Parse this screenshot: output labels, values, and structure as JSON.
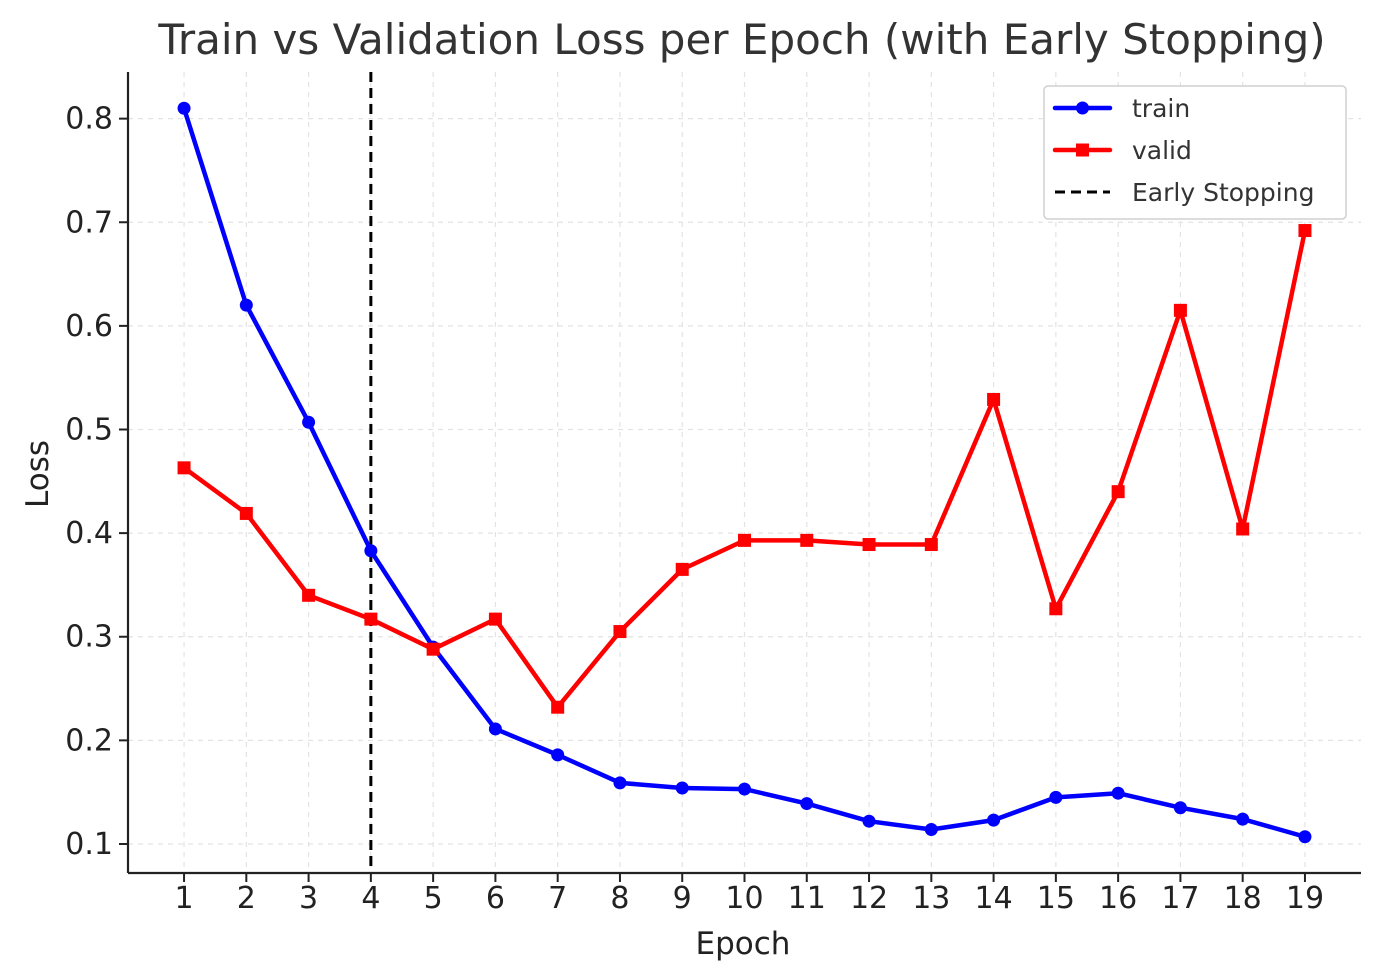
{
  "chart_data": {
    "type": "line",
    "title": "Train vs Validation Loss per Epoch (with Early Stopping)",
    "xlabel": "Epoch",
    "ylabel": "Loss",
    "x": [
      1,
      2,
      3,
      4,
      5,
      6,
      7,
      8,
      9,
      10,
      11,
      12,
      13,
      14,
      15,
      16,
      17,
      18,
      19
    ],
    "xlim": [
      0.1,
      19.9
    ],
    "ylim": [
      0.072,
      0.845
    ],
    "y_ticks": [
      0.1,
      0.2,
      0.3,
      0.4,
      0.5,
      0.6,
      0.7,
      0.8
    ],
    "y_tick_labels": [
      "0.1",
      "0.2",
      "0.3",
      "0.4",
      "0.5",
      "0.6",
      "0.7",
      "0.8"
    ],
    "x_tick_labels": [
      "1",
      "2",
      "3",
      "4",
      "5",
      "6",
      "7",
      "8",
      "9",
      "10",
      "11",
      "12",
      "13",
      "14",
      "15",
      "16",
      "17",
      "18",
      "19"
    ],
    "grid": true,
    "legend_position": "top-right",
    "series": [
      {
        "name": "train",
        "color": "#0000ff",
        "marker": "circle",
        "values": [
          0.81,
          0.62,
          0.507,
          0.383,
          0.29,
          0.211,
          0.186,
          0.159,
          0.154,
          0.153,
          0.139,
          0.122,
          0.114,
          0.123,
          0.145,
          0.149,
          0.135,
          0.124,
          0.107
        ]
      },
      {
        "name": "valid",
        "color": "#ff0000",
        "marker": "square",
        "values": [
          0.463,
          0.419,
          0.34,
          0.317,
          0.288,
          0.317,
          0.232,
          0.305,
          0.365,
          0.393,
          0.393,
          0.389,
          0.389,
          0.529,
          0.327,
          0.44,
          0.615,
          0.404,
          0.692
        ]
      }
    ],
    "vlines": [
      {
        "name": "Early Stopping",
        "x": 4,
        "color": "#000000",
        "style": "dashed"
      }
    ]
  }
}
